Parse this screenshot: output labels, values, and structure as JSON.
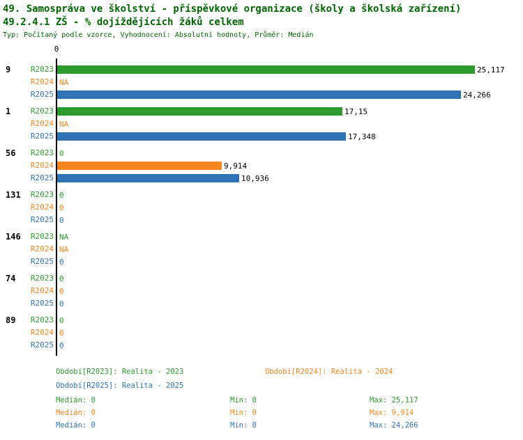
{
  "title": {
    "line1": "49. Samospráva ve školství - příspěvkové organizace (školy a školská zařízení)",
    "line2": "49.2.4.1 ZŠ - % dojíždějících žáků celkem",
    "line3": "Typ: Počítaný podle vzorce, Vyhodnocení: Absolutní hodnoty, Průměr: Medián"
  },
  "colors": {
    "r2023": "#2e9b2e",
    "r2024": "#f5861f",
    "r2025": "#2e73b5",
    "title": "#006400",
    "axis": "#000000",
    "value_label": "#000000"
  },
  "chart_data": {
    "type": "bar",
    "orientation": "horizontal",
    "title": "49.2.4.1 ZŠ - % dojíždějících žáků celkem",
    "value_axis_origin_label": "0",
    "legend_position": "bottom",
    "grid": false,
    "series_labels": [
      "R2023",
      "R2024",
      "R2025"
    ],
    "groups": [
      {
        "label": "9",
        "rows": [
          {
            "year": "R2023",
            "series": "r2023",
            "value": 25.117,
            "display": "25,117"
          },
          {
            "year": "R2024",
            "series": "r2024",
            "value": null,
            "display": "NA"
          },
          {
            "year": "R2025",
            "series": "r2025",
            "value": 24.266,
            "display": "24,266"
          }
        ]
      },
      {
        "label": "1",
        "rows": [
          {
            "year": "R2023",
            "series": "r2023",
            "value": 17.15,
            "display": "17,15"
          },
          {
            "year": "R2024",
            "series": "r2024",
            "value": null,
            "display": "NA"
          },
          {
            "year": "R2025",
            "series": "r2025",
            "value": 17.348,
            "display": "17,348"
          }
        ]
      },
      {
        "label": "56",
        "rows": [
          {
            "year": "R2023",
            "series": "r2023",
            "value": 0,
            "display": "0"
          },
          {
            "year": "R2024",
            "series": "r2024",
            "value": 9.914,
            "display": "9,914"
          },
          {
            "year": "R2025",
            "series": "r2025",
            "value": 10.936,
            "display": "10,936"
          }
        ]
      },
      {
        "label": "131",
        "rows": [
          {
            "year": "R2023",
            "series": "r2023",
            "value": 0,
            "display": "0"
          },
          {
            "year": "R2024",
            "series": "r2024",
            "value": 0,
            "display": "0"
          },
          {
            "year": "R2025",
            "series": "r2025",
            "value": 0,
            "display": "0"
          }
        ]
      },
      {
        "label": "146",
        "rows": [
          {
            "year": "R2023",
            "series": "r2023",
            "value": null,
            "display": "NA"
          },
          {
            "year": "R2024",
            "series": "r2024",
            "value": null,
            "display": "NA"
          },
          {
            "year": "R2025",
            "series": "r2025",
            "value": 0,
            "display": "0"
          }
        ]
      },
      {
        "label": "74",
        "rows": [
          {
            "year": "R2023",
            "series": "r2023",
            "value": 0,
            "display": "0"
          },
          {
            "year": "R2024",
            "series": "r2024",
            "value": 0,
            "display": "0"
          },
          {
            "year": "R2025",
            "series": "r2025",
            "value": 0,
            "display": "0"
          }
        ]
      },
      {
        "label": "89",
        "rows": [
          {
            "year": "R2023",
            "series": "r2023",
            "value": 0,
            "display": "0"
          },
          {
            "year": "R2024",
            "series": "r2024",
            "value": 0,
            "display": "0"
          },
          {
            "year": "R2025",
            "series": "r2025",
            "value": 0,
            "display": "0"
          }
        ]
      }
    ]
  },
  "legend": [
    {
      "series": "r2023",
      "text": "Období[R2023]: Realita - 2023"
    },
    {
      "series": "r2024",
      "text": "Období[R2024]: Realita - 2024"
    },
    {
      "series": "r2025",
      "text": "Období[R2025]: Realita - 2025"
    }
  ],
  "stats": [
    {
      "series": "r2023",
      "median": "Medián: 0",
      "min": "Min: 0",
      "max": "Max: 25,117"
    },
    {
      "series": "r2024",
      "median": "Medián: 0",
      "min": "Min: 0",
      "max": "Max: 9,914"
    },
    {
      "series": "r2025",
      "median": "Medián: 0",
      "min": "Min: 0",
      "max": "Max: 24,266"
    }
  ]
}
